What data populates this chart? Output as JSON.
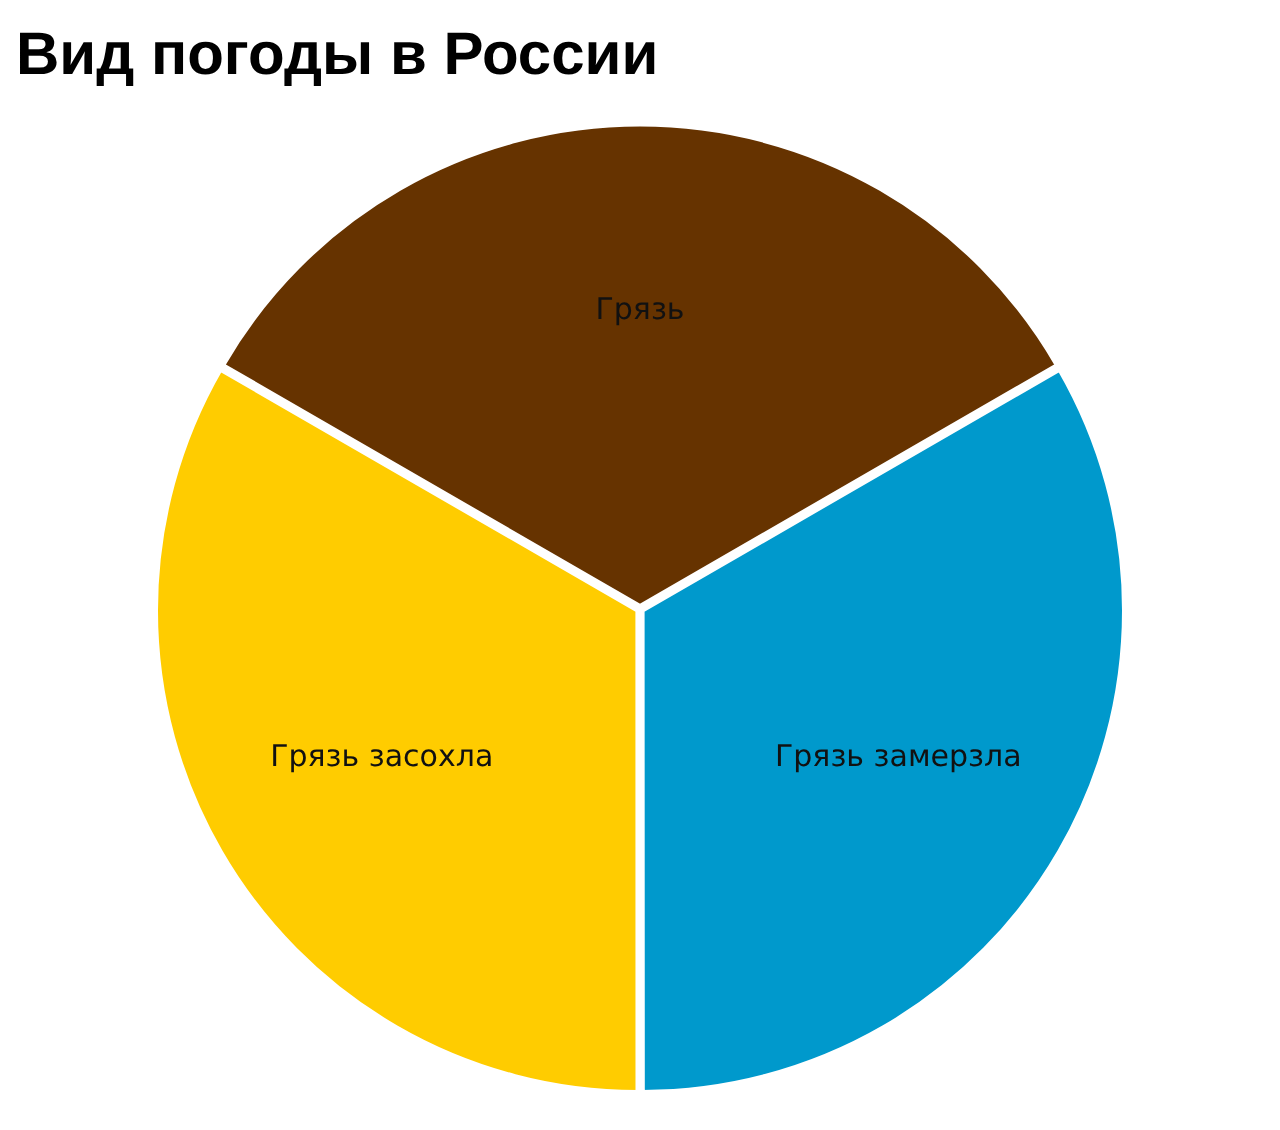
{
  "chart_data": {
    "type": "pie",
    "title": "Вид погоды в России",
    "categories": [
      "Грязь",
      "Грязь замерзла",
      "Грязь засохла"
    ],
    "values": [
      33.33,
      33.33,
      33.34
    ],
    "colors": [
      "#663300",
      "#0099cc",
      "#ffcc00"
    ],
    "legend": false
  }
}
